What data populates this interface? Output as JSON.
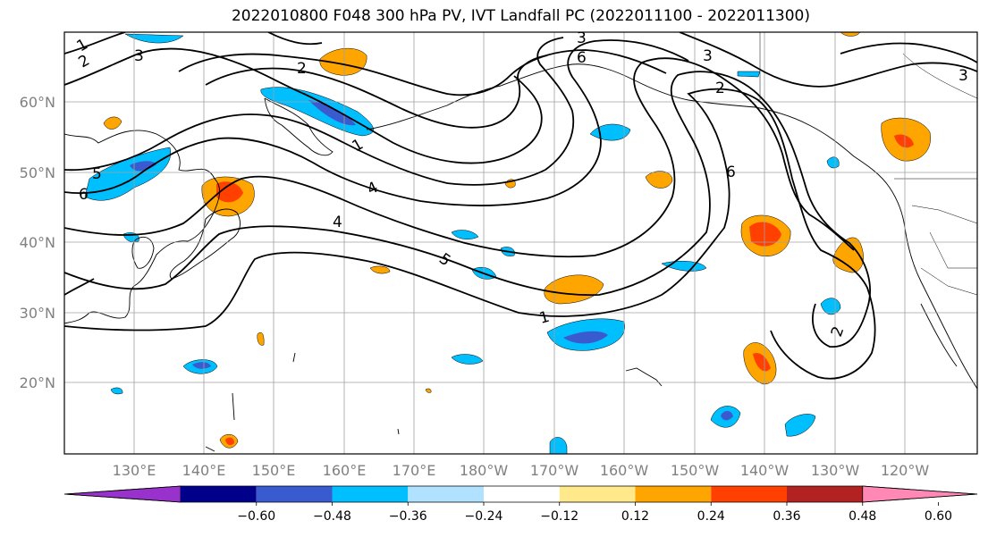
{
  "title": "2022010800 F048 300 hPa PV, IVT Landfall PC (2022011100 - 2022011300)",
  "lat_labels": [
    "60°N",
    "50°N",
    "40°N",
    "30°N",
    "20°N"
  ],
  "lon_labels": [
    "130°E",
    "140°E",
    "150°E",
    "160°E",
    "170°E",
    "180°W",
    "170°W",
    "160°W",
    "150°W",
    "140°W",
    "130°W",
    "120°W"
  ],
  "colorbar": {
    "colors": [
      "#9932cc",
      "#00008b",
      "#3a5bcf",
      "#00bfff",
      "#b0e2ff",
      "#ffffff",
      "#ffe98a",
      "#ffa500",
      "#ff4000",
      "#b22222",
      "#ff88b4"
    ],
    "tick_labels": [
      "−0.60",
      "−0.48",
      "−0.36",
      "−0.24",
      "−0.12",
      "0.12",
      "0.24",
      "0.36",
      "0.48",
      "0.60"
    ]
  },
  "contour_labels": [
    "1",
    "2",
    "2",
    "3",
    "3",
    "6",
    "5",
    "6",
    "4",
    "4",
    "5",
    "1",
    "6",
    "3",
    "2",
    "2",
    "1",
    "3"
  ],
  "colors": {
    "contour": "#000000",
    "coast": "#000000",
    "grid": "#a0a0a0"
  }
}
